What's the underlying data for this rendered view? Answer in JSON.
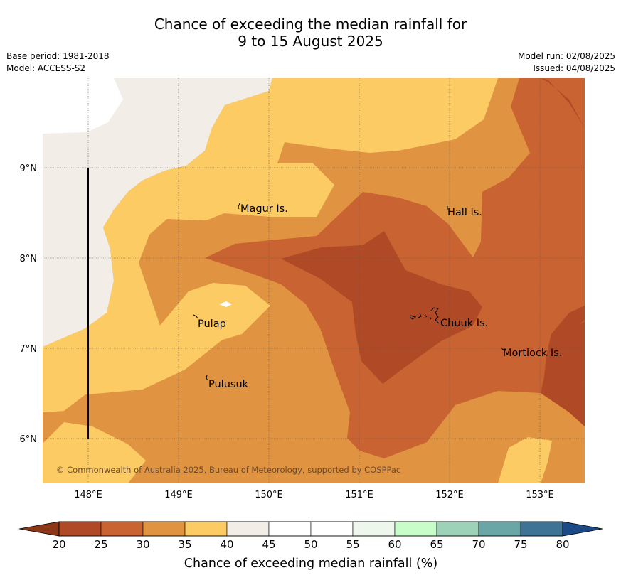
{
  "title": {
    "line1": "Chance of exceeding the median rainfall for",
    "line2": "9 to 15 August 2025"
  },
  "meta": {
    "base_period": "Base period: 1981-2018",
    "model": "Model: ACCESS-S2",
    "model_run": "Model run: 02/08/2025",
    "issued": "Issued: 04/08/2025"
  },
  "map": {
    "longitude_labels": [
      "148°E",
      "149°E",
      "150°E",
      "151°E",
      "152°E",
      "153°E"
    ],
    "latitude_labels": [
      "9°N",
      "8°N",
      "7°N",
      "6°N"
    ],
    "places": [
      {
        "name": "Magur Is.",
        "key": "magur"
      },
      {
        "name": "Hall Is.",
        "key": "hall"
      },
      {
        "name": "Pulap",
        "key": "pulap"
      },
      {
        "name": "Chuuk Is.",
        "key": "chuuk"
      },
      {
        "name": "Mortlock Is.",
        "key": "mortlock"
      },
      {
        "name": "Pulusuk",
        "key": "pulusuk"
      }
    ],
    "copyright": "© Commonwealth of Australia 2025, Bureau of Meteorology, supported by COSPPac",
    "colors": {
      "c20_25": "#b04a26",
      "c25_30": "#c96331",
      "c30_35": "#e09442",
      "c35_40": "#fdcb64",
      "c40_45": "#f2ede6",
      "c45_55": "#ffffff",
      "grid": "#555555"
    }
  },
  "colorbar": {
    "label": "Chance of exceeding median rainfall (%)",
    "ticks": [
      "20",
      "25",
      "30",
      "35",
      "40",
      "45",
      "50",
      "55",
      "60",
      "65",
      "70",
      "75",
      "80"
    ],
    "colors": [
      "#b04a26",
      "#c96331",
      "#e09442",
      "#fdcb64",
      "#f2ede6",
      "#ffffff",
      "#ffffff",
      "#edf7ec",
      "#c8fcc8",
      "#9ed2b8",
      "#6ba6a6",
      "#3e7396"
    ],
    "under_color": "#8c3718",
    "over_color": "#1b4a86"
  }
}
